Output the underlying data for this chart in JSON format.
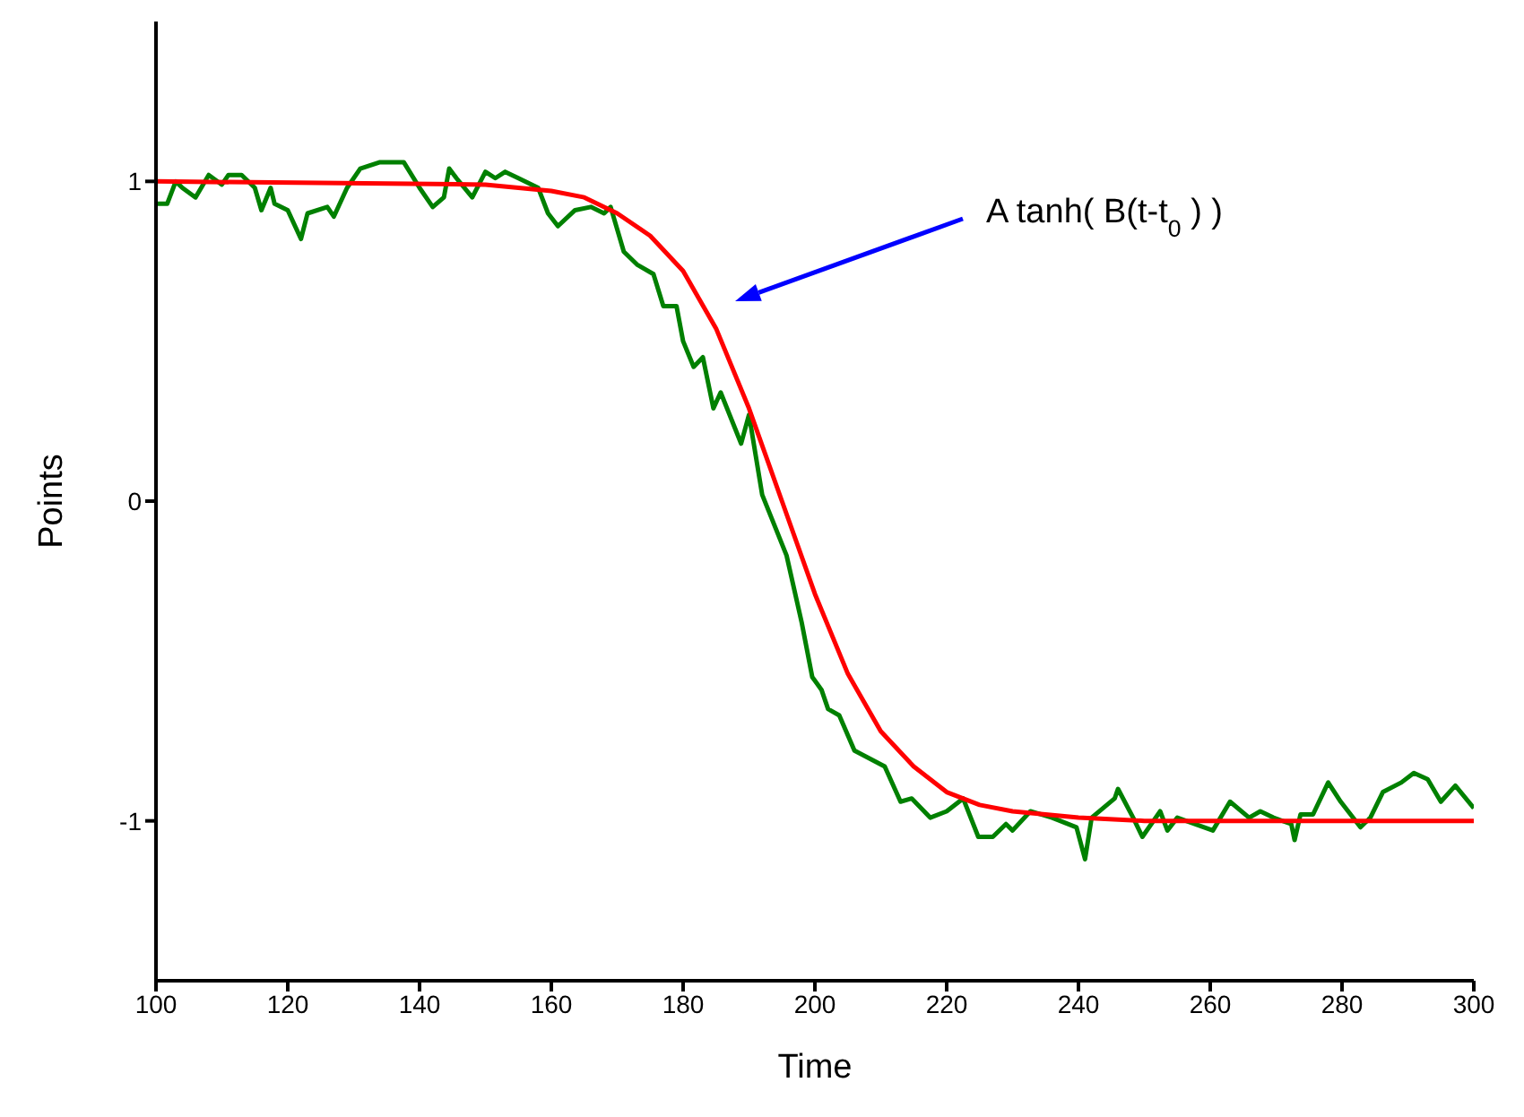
{
  "chart_data": {
    "type": "line",
    "xlabel": "Time",
    "ylabel": "Points",
    "xlim": [
      100,
      300
    ],
    "ylim": [
      -1.5,
      1.5
    ],
    "xticks": [
      100,
      120,
      140,
      160,
      180,
      200,
      220,
      240,
      260,
      280,
      300
    ],
    "yticks": [
      -1,
      0,
      1
    ],
    "grid": false,
    "legend": false,
    "marker": "none",
    "line_style": "solid",
    "annotations": [
      "A tanh( B(t-t$_{0}$)  )"
    ],
    "series": [
      {
        "color": "#008000",
        "x": [
          100,
          101.7,
          103,
          104,
          106,
          108,
          110,
          111,
          113,
          115,
          116,
          117.4,
          118,
          120,
          122,
          123,
          126,
          127,
          129,
          131,
          134,
          137.6,
          140,
          142,
          143.7,
          144.5,
          145.6,
          148,
          150,
          151.5,
          153,
          155,
          158,
          159.5,
          161,
          163.6,
          166,
          168,
          169,
          171,
          173,
          175.5,
          177,
          179,
          180,
          181.6,
          183,
          184.6,
          185.7,
          188.8,
          190,
          192,
          195.7,
          198,
          199.6,
          201,
          202,
          203.7,
          206,
          210.6,
          213,
          214.7,
          217.5,
          220,
          222.5,
          224.8,
          227,
          229,
          230,
          232.7,
          236,
          239.7,
          241,
          242,
          245.5,
          246,
          248.3,
          249.7,
          252.4,
          253.5,
          255,
          260.4,
          263,
          265.9,
          267.6,
          269.6,
          272.3,
          272.8,
          273.7,
          275.6,
          277.9,
          279.8,
          282.8,
          284.3,
          286.2,
          289,
          290.9,
          293,
          295,
          297.2,
          300
        ],
        "values": [
          0.93,
          0.93,
          1.0,
          0.98,
          0.95,
          1.02,
          0.99,
          1.02,
          1.02,
          0.98,
          0.91,
          0.98,
          0.93,
          0.91,
          0.82,
          0.9,
          0.92,
          0.89,
          0.98,
          1.04,
          1.06,
          1.06,
          0.98,
          0.92,
          0.95,
          1.04,
          1.01,
          0.95,
          1.03,
          1.01,
          1.03,
          1.01,
          0.98,
          0.9,
          0.86,
          0.91,
          0.92,
          0.9,
          0.92,
          0.78,
          0.74,
          0.71,
          0.61,
          0.61,
          0.5,
          0.42,
          0.45,
          0.29,
          0.34,
          0.18,
          0.27,
          0.02,
          -0.17,
          -0.38,
          -0.55,
          -0.59,
          -0.65,
          -0.67,
          -0.78,
          -0.83,
          -0.94,
          -0.93,
          -0.99,
          -0.97,
          -0.93,
          -1.05,
          -1.05,
          -1.01,
          -1.03,
          -0.97,
          -0.99,
          -1.02,
          -1.12,
          -0.99,
          -0.93,
          -0.9,
          -0.99,
          -1.05,
          -0.97,
          -1.03,
          -0.99,
          -1.03,
          -0.94,
          -0.99,
          -0.97,
          -0.99,
          -1.01,
          -1.06,
          -0.98,
          -0.98,
          -0.88,
          -0.94,
          -1.02,
          -0.99,
          -0.91,
          -0.88,
          -0.85,
          -0.87,
          -0.94,
          -0.89,
          -0.96
        ]
      },
      {
        "type": "line",
        "color": "#ff0000",
        "x": [
          100,
          150,
          160,
          165,
          170,
          175,
          180,
          185,
          190,
          195,
          200,
          205,
          210,
          215,
          220,
          225,
          230,
          240,
          250,
          300
        ],
        "values": [
          1.0,
          0.99,
          0.97,
          0.95,
          0.9,
          0.83,
          0.72,
          0.54,
          0.29,
          0,
          -0.29,
          -0.54,
          -0.72,
          -0.83,
          -0.91,
          -0.95,
          -0.97,
          -0.99,
          -1.0,
          -1.0
        ]
      }
    ]
  }
}
